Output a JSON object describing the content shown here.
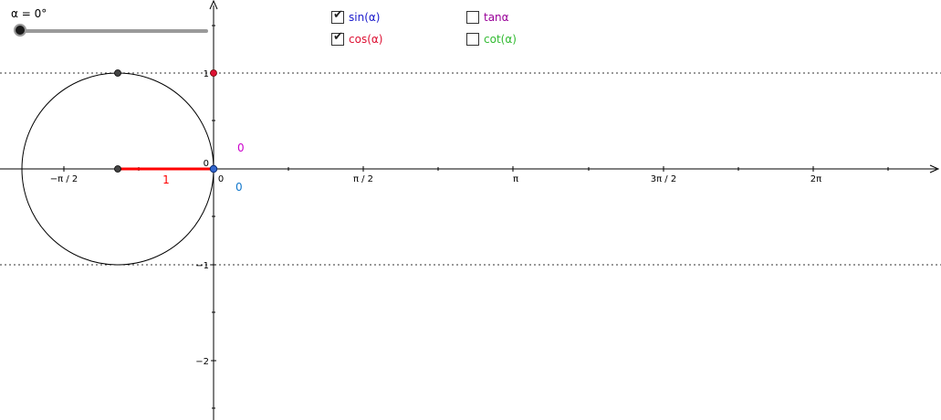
{
  "slider": {
    "label": "α = 0°",
    "value_deg": 0,
    "min_deg": 0,
    "max_deg": 360
  },
  "checkboxes": [
    {
      "id": "sin",
      "label": "sin(α)",
      "checked": true,
      "color": "#1a1acc"
    },
    {
      "id": "cos",
      "label": "cos(α)",
      "checked": true,
      "color": "#dd1133"
    },
    {
      "id": "tan",
      "label": "tanα",
      "checked": false,
      "color": "#990099"
    },
    {
      "id": "cot",
      "label": "cot(α)",
      "checked": false,
      "color": "#33bb33"
    }
  ],
  "graph": {
    "x_tick_labels": [
      "−π / 2",
      "0",
      "π / 2",
      "π",
      "3π / 2",
      "2π"
    ],
    "y_tick_labels": [
      "1",
      "0",
      "−1",
      "−2"
    ],
    "radius_label": "1",
    "value_labels": {
      "upper": "0",
      "lower": "0"
    },
    "colors": {
      "axis": "#000000",
      "circle": "#000000",
      "radius": "#ff0000",
      "radius_label": "#ff0000",
      "upper_value": "#cc00cc",
      "lower_value": "#1177cc",
      "cos_point": "#dd1133",
      "sin_point": "#3366cc",
      "circle_point": "#444444",
      "dotted_line": "#333333"
    }
  }
}
